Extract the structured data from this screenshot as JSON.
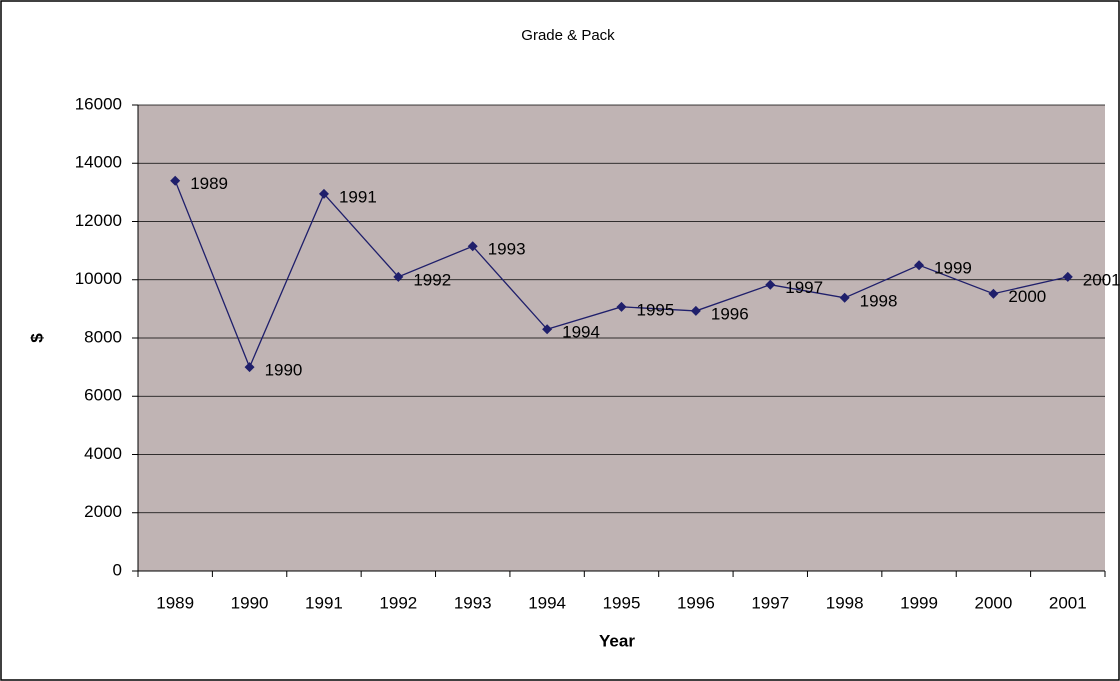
{
  "chart_data": {
    "type": "line",
    "title": "Grade & Pack",
    "x_label": "Year",
    "y_label": "$",
    "categories": [
      "1989",
      "1990",
      "1991",
      "1992",
      "1993",
      "1994",
      "1995",
      "1996",
      "1997",
      "1998",
      "1999",
      "2000",
      "2001"
    ],
    "series": [
      {
        "name": "Grade & Pack",
        "color": "#1f1f6b",
        "values": [
          13400,
          7000,
          12950,
          10100,
          11150,
          8300,
          9070,
          8930,
          9830,
          9380,
          10500,
          9520,
          10100
        ]
      }
    ],
    "ylim": [
      0,
      16000
    ],
    "yticks": [
      0,
      2000,
      4000,
      6000,
      8000,
      10000,
      12000,
      14000,
      16000
    ],
    "grid": true,
    "plot_background": "#c0b4b4"
  }
}
